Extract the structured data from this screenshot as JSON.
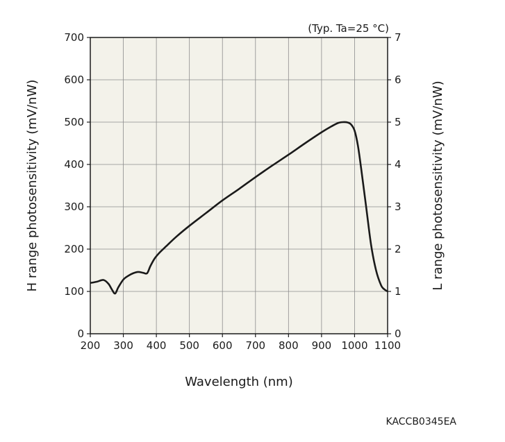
{
  "chart_data": {
    "type": "line",
    "annotation": "(Typ. Ta=25 °C)",
    "xlabel": "Wavelength (nm)",
    "ylabel_left": "H range photosensitivity (mV/nW)",
    "ylabel_right": "L range photosensitivity (mV/nW)",
    "xlim": [
      200,
      1100
    ],
    "ylim_left": [
      0,
      700
    ],
    "ylim_right": [
      0,
      7
    ],
    "x_ticks": [
      "200",
      "300",
      "400",
      "500",
      "600",
      "700",
      "800",
      "900",
      "1000",
      "1100"
    ],
    "y_ticks_left": [
      "0",
      "100",
      "200",
      "300",
      "400",
      "500",
      "600",
      "700"
    ],
    "y_ticks_right": [
      "0",
      "1",
      "2",
      "3",
      "4",
      "5",
      "6",
      "7"
    ],
    "grid": true,
    "series": [
      {
        "x": [
          200,
          220,
          240,
          255,
          265,
          275,
          285,
          300,
          315,
          330,
          345,
          360,
          372,
          382,
          395,
          410,
          430,
          460,
          500,
          550,
          600,
          650,
          700,
          750,
          800,
          850,
          900,
          930,
          950,
          965,
          980,
          990,
          1000,
          1010,
          1020,
          1035,
          1050,
          1065,
          1080,
          1090,
          1100
        ],
        "y": [
          120,
          123,
          127,
          118,
          105,
          95,
          110,
          128,
          137,
          143,
          146,
          144,
          143,
          160,
          178,
          192,
          207,
          229,
          255,
          285,
          315,
          342,
          370,
          397,
          423,
          450,
          476,
          490,
          498,
          500,
          499,
          494,
          480,
          445,
          390,
          300,
          210,
          150,
          115,
          105,
          100
        ]
      }
    ]
  },
  "doc_code": "KACCB0345EA",
  "colors": {
    "plot_bg": "#f3f2ea",
    "grid": "#8c8c8c",
    "frame": "#1a1a1a",
    "line": "#1a1a1a"
  }
}
